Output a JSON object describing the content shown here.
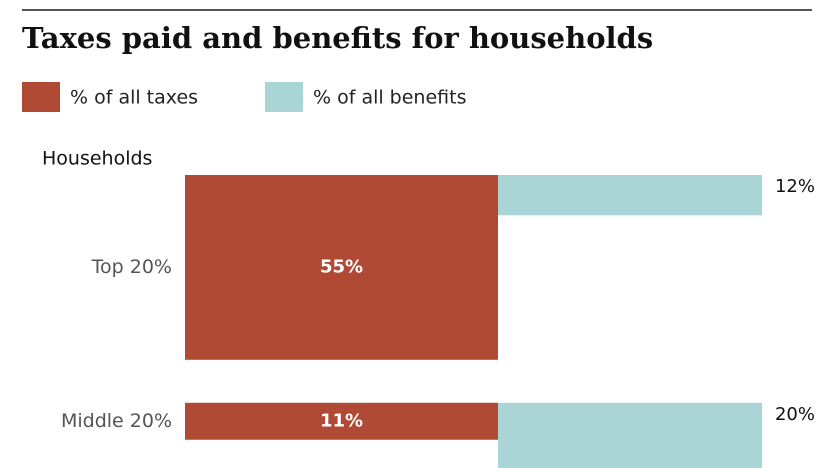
{
  "chart_data": {
    "type": "bar",
    "title": "Taxes paid and benefits for households",
    "axis_label": "Households",
    "categories": [
      "Top 20%",
      "Middle 20%"
    ],
    "series": [
      {
        "name": "% of all taxes",
        "color": "#b04a35",
        "values": [
          55,
          11
        ],
        "value_labels": [
          "55%",
          "11%"
        ]
      },
      {
        "name": "% of all benefits",
        "color": "#a9d5d6",
        "values": [
          12,
          20
        ],
        "value_labels": [
          "12%",
          "20%"
        ]
      }
    ]
  }
}
